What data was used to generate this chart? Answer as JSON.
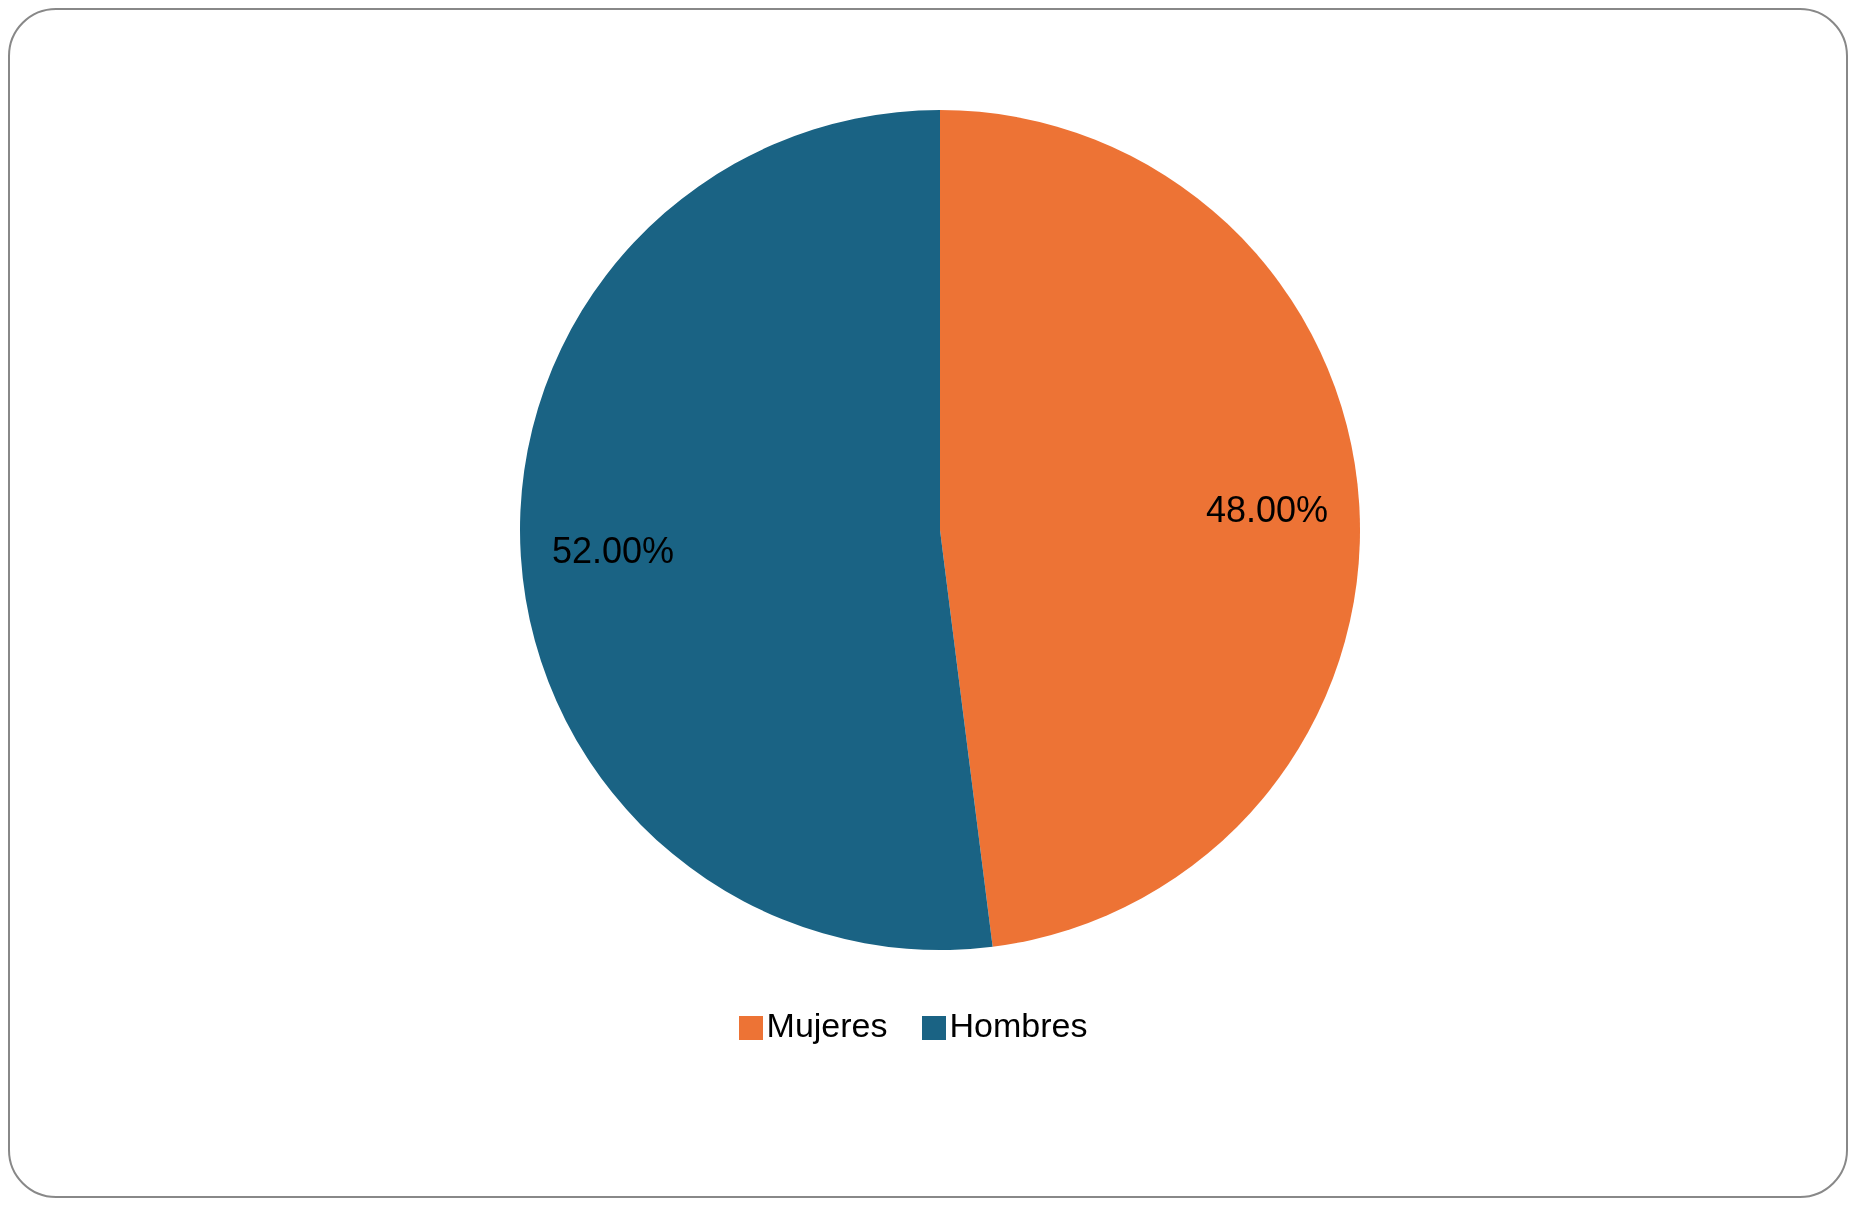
{
  "chart_data": {
    "type": "pie",
    "categories": [
      "Mujeres",
      "Hombres"
    ],
    "values": [
      48,
      52
    ],
    "colors": [
      "#ed7335",
      "#1a6384"
    ],
    "value_labels": [
      "48.00%",
      "52.00%"
    ],
    "legend": "bottom"
  }
}
